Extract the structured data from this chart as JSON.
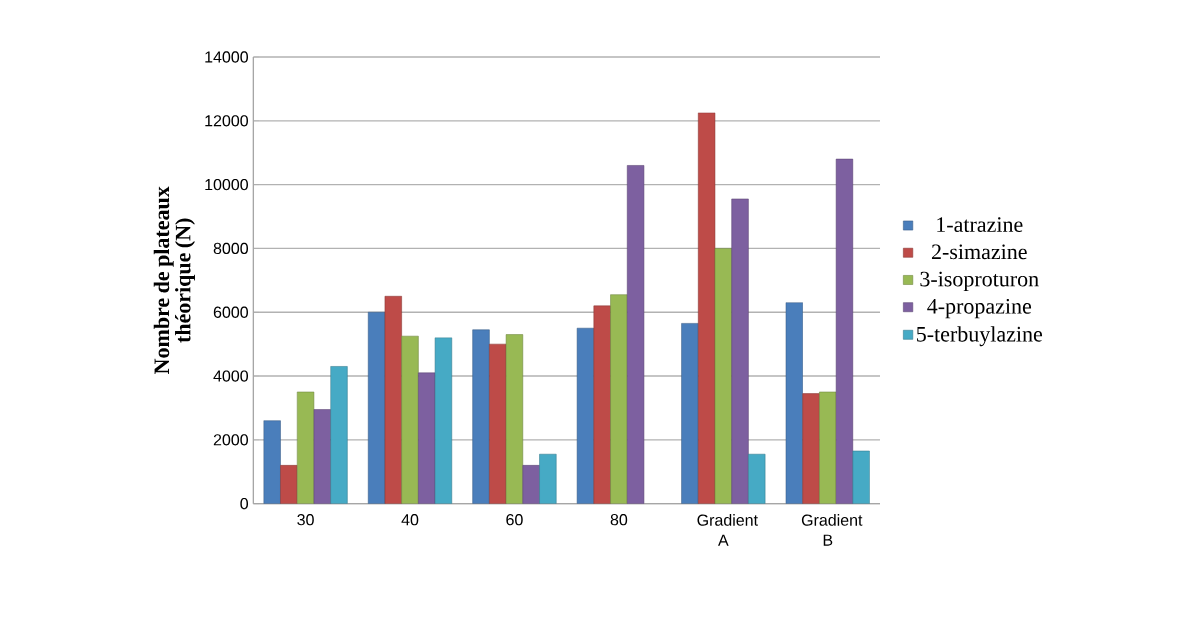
{
  "chart_data": {
    "type": "bar",
    "ylabel": "Nombre de plateaux théorique (N)",
    "categories": [
      "30",
      "40",
      "60",
      "80",
      "Gradient A",
      "Gradient B"
    ],
    "series": [
      {
        "name": "1-atrazine",
        "color": "#4a7ebb",
        "values": [
          2600,
          6000,
          5450,
          5500,
          5650,
          6300
        ]
      },
      {
        "name": "2-simazine",
        "color": "#be4b48",
        "values": [
          1200,
          6500,
          5000,
          6200,
          12250,
          3450
        ]
      },
      {
        "name": "3-isoproturon",
        "color": "#98b954",
        "values": [
          3500,
          5250,
          5300,
          6550,
          8000,
          3500
        ]
      },
      {
        "name": "4-propazine",
        "color": "#7d60a0",
        "values": [
          2950,
          4100,
          1200,
          10600,
          9550,
          10800
        ]
      },
      {
        "name": "5-terbuylazine",
        "color": "#46aac5",
        "values": [
          4300,
          5200,
          1550,
          null,
          1550,
          1650
        ]
      }
    ],
    "ylim": [
      0,
      14000
    ],
    "yticks": [
      0,
      2000,
      4000,
      6000,
      8000,
      10000,
      12000,
      14000
    ],
    "grid": "y",
    "legend": "right"
  }
}
